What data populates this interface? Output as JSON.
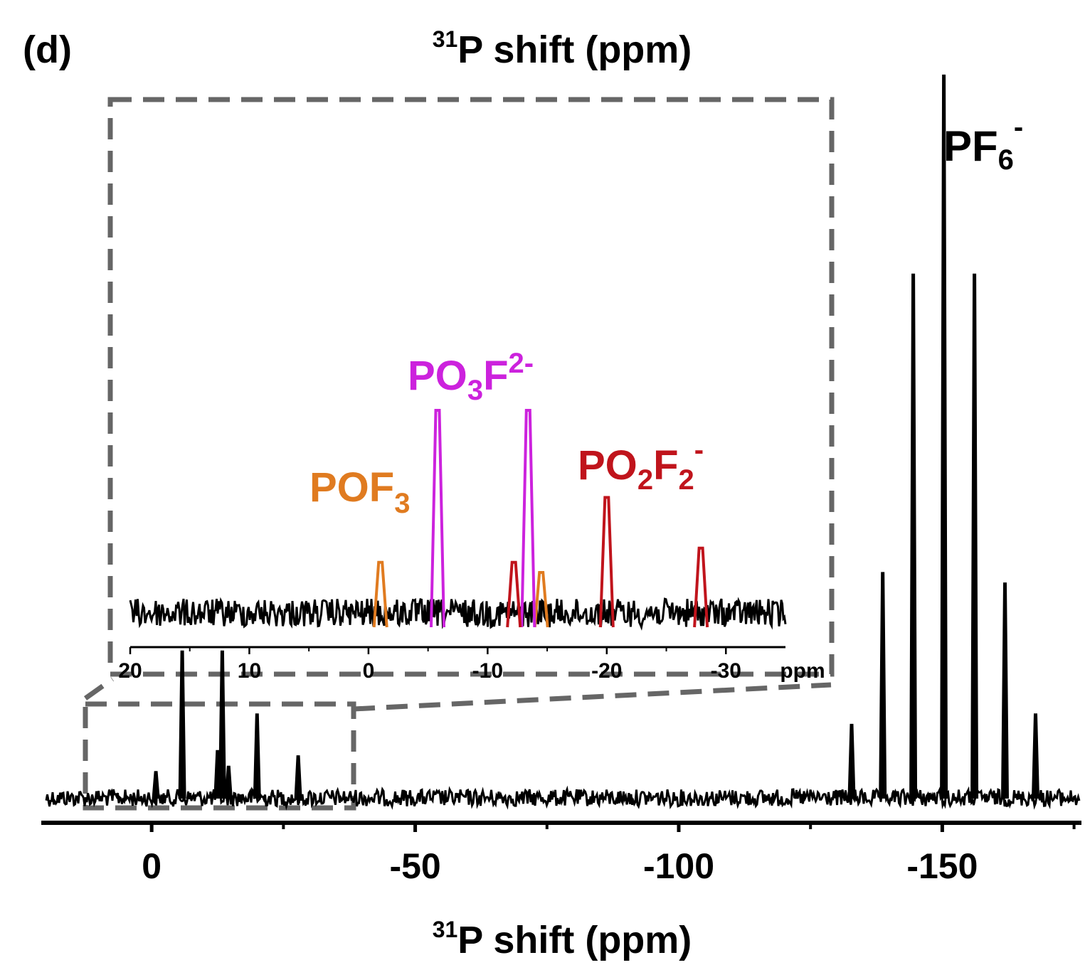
{
  "panel_label": "(d)",
  "top_title": {
    "sup": "31",
    "main": "P shift (ppm)"
  },
  "xlabel": {
    "sup": "31",
    "main": "P shift (ppm)"
  },
  "colors": {
    "spectrum": "#000000",
    "box": "#666666",
    "POF3": "#e07b20",
    "PO3F2-": "#cc22dd",
    "PO2F2-": "#c0141c"
  },
  "chart_data": [
    {
      "type": "line",
      "title": "",
      "xlabel": "31P shift (ppm)",
      "xlim": [
        20,
        -176
      ],
      "x_ticks": [
        0,
        -50,
        -100,
        -150
      ],
      "x_tick_labels": [
        "0",
        "-50",
        "-100",
        "-150"
      ],
      "minor_ticks": [
        25,
        -25,
        -75,
        -125,
        -175
      ],
      "ylim": [
        0,
        1.0
      ],
      "y_axis_shown": false,
      "noise_level": 0.02,
      "peaks": [
        {
          "x": -0.8,
          "height": 0.05
        },
        {
          "x": -5.8,
          "height": 0.28
        },
        {
          "x": -12.5,
          "height": 0.09
        },
        {
          "x": -13.4,
          "height": 0.28
        },
        {
          "x": -14.6,
          "height": 0.06
        },
        {
          "x": -20.0,
          "height": 0.16
        },
        {
          "x": -27.8,
          "height": 0.08
        },
        {
          "x": -132.8,
          "height": 0.14
        },
        {
          "x": -138.7,
          "height": 0.43
        },
        {
          "x": -144.5,
          "height": 1.0
        },
        {
          "x": -150.3,
          "height": 1.38
        },
        {
          "x": -156.1,
          "height": 1.0
        },
        {
          "x": -161.9,
          "height": 0.41
        },
        {
          "x": -167.7,
          "height": 0.16
        }
      ],
      "annotations": [
        {
          "text_main": "PF",
          "sub": "6",
          "sup": "-",
          "color": "#000000"
        }
      ]
    },
    {
      "type": "line",
      "title": "inset",
      "xlabel": "ppm",
      "xlim": [
        20,
        -35
      ],
      "x_tick_labels": [
        "20",
        "10",
        "0",
        "-10",
        "-20",
        "-30",
        "ppm"
      ],
      "x_ticks": [
        20,
        10,
        0,
        -10,
        -20,
        -30
      ],
      "noise_level": 0.06,
      "series": [
        {
          "name": "POF3",
          "color": "#e07b20",
          "peaks": [
            {
              "x": -1.0,
              "height": 0.25
            },
            {
              "x": -14.5,
              "height": 0.2
            }
          ]
        },
        {
          "name": "PO3F2-",
          "color": "#cc22dd",
          "peaks": [
            {
              "x": -5.8,
              "height": 1.0
            },
            {
              "x": -13.4,
              "height": 1.0
            }
          ]
        },
        {
          "name": "PO2F2-",
          "color": "#c0141c",
          "peaks": [
            {
              "x": -12.2,
              "height": 0.25
            },
            {
              "x": -20.0,
              "height": 0.57
            },
            {
              "x": -27.9,
              "height": 0.32
            }
          ]
        }
      ],
      "annotations": [
        {
          "text_main": "POF",
          "sub": "3",
          "sup": "",
          "color": "#e07b20"
        },
        {
          "text_main": "PO",
          "sub": "3",
          "mid": "F",
          "sup": "2-",
          "color": "#cc22dd"
        },
        {
          "text_main": "PO",
          "sub": "2",
          "mid": "F",
          "sub2": "2",
          "sup": "-",
          "color": "#c0141c"
        }
      ]
    }
  ]
}
